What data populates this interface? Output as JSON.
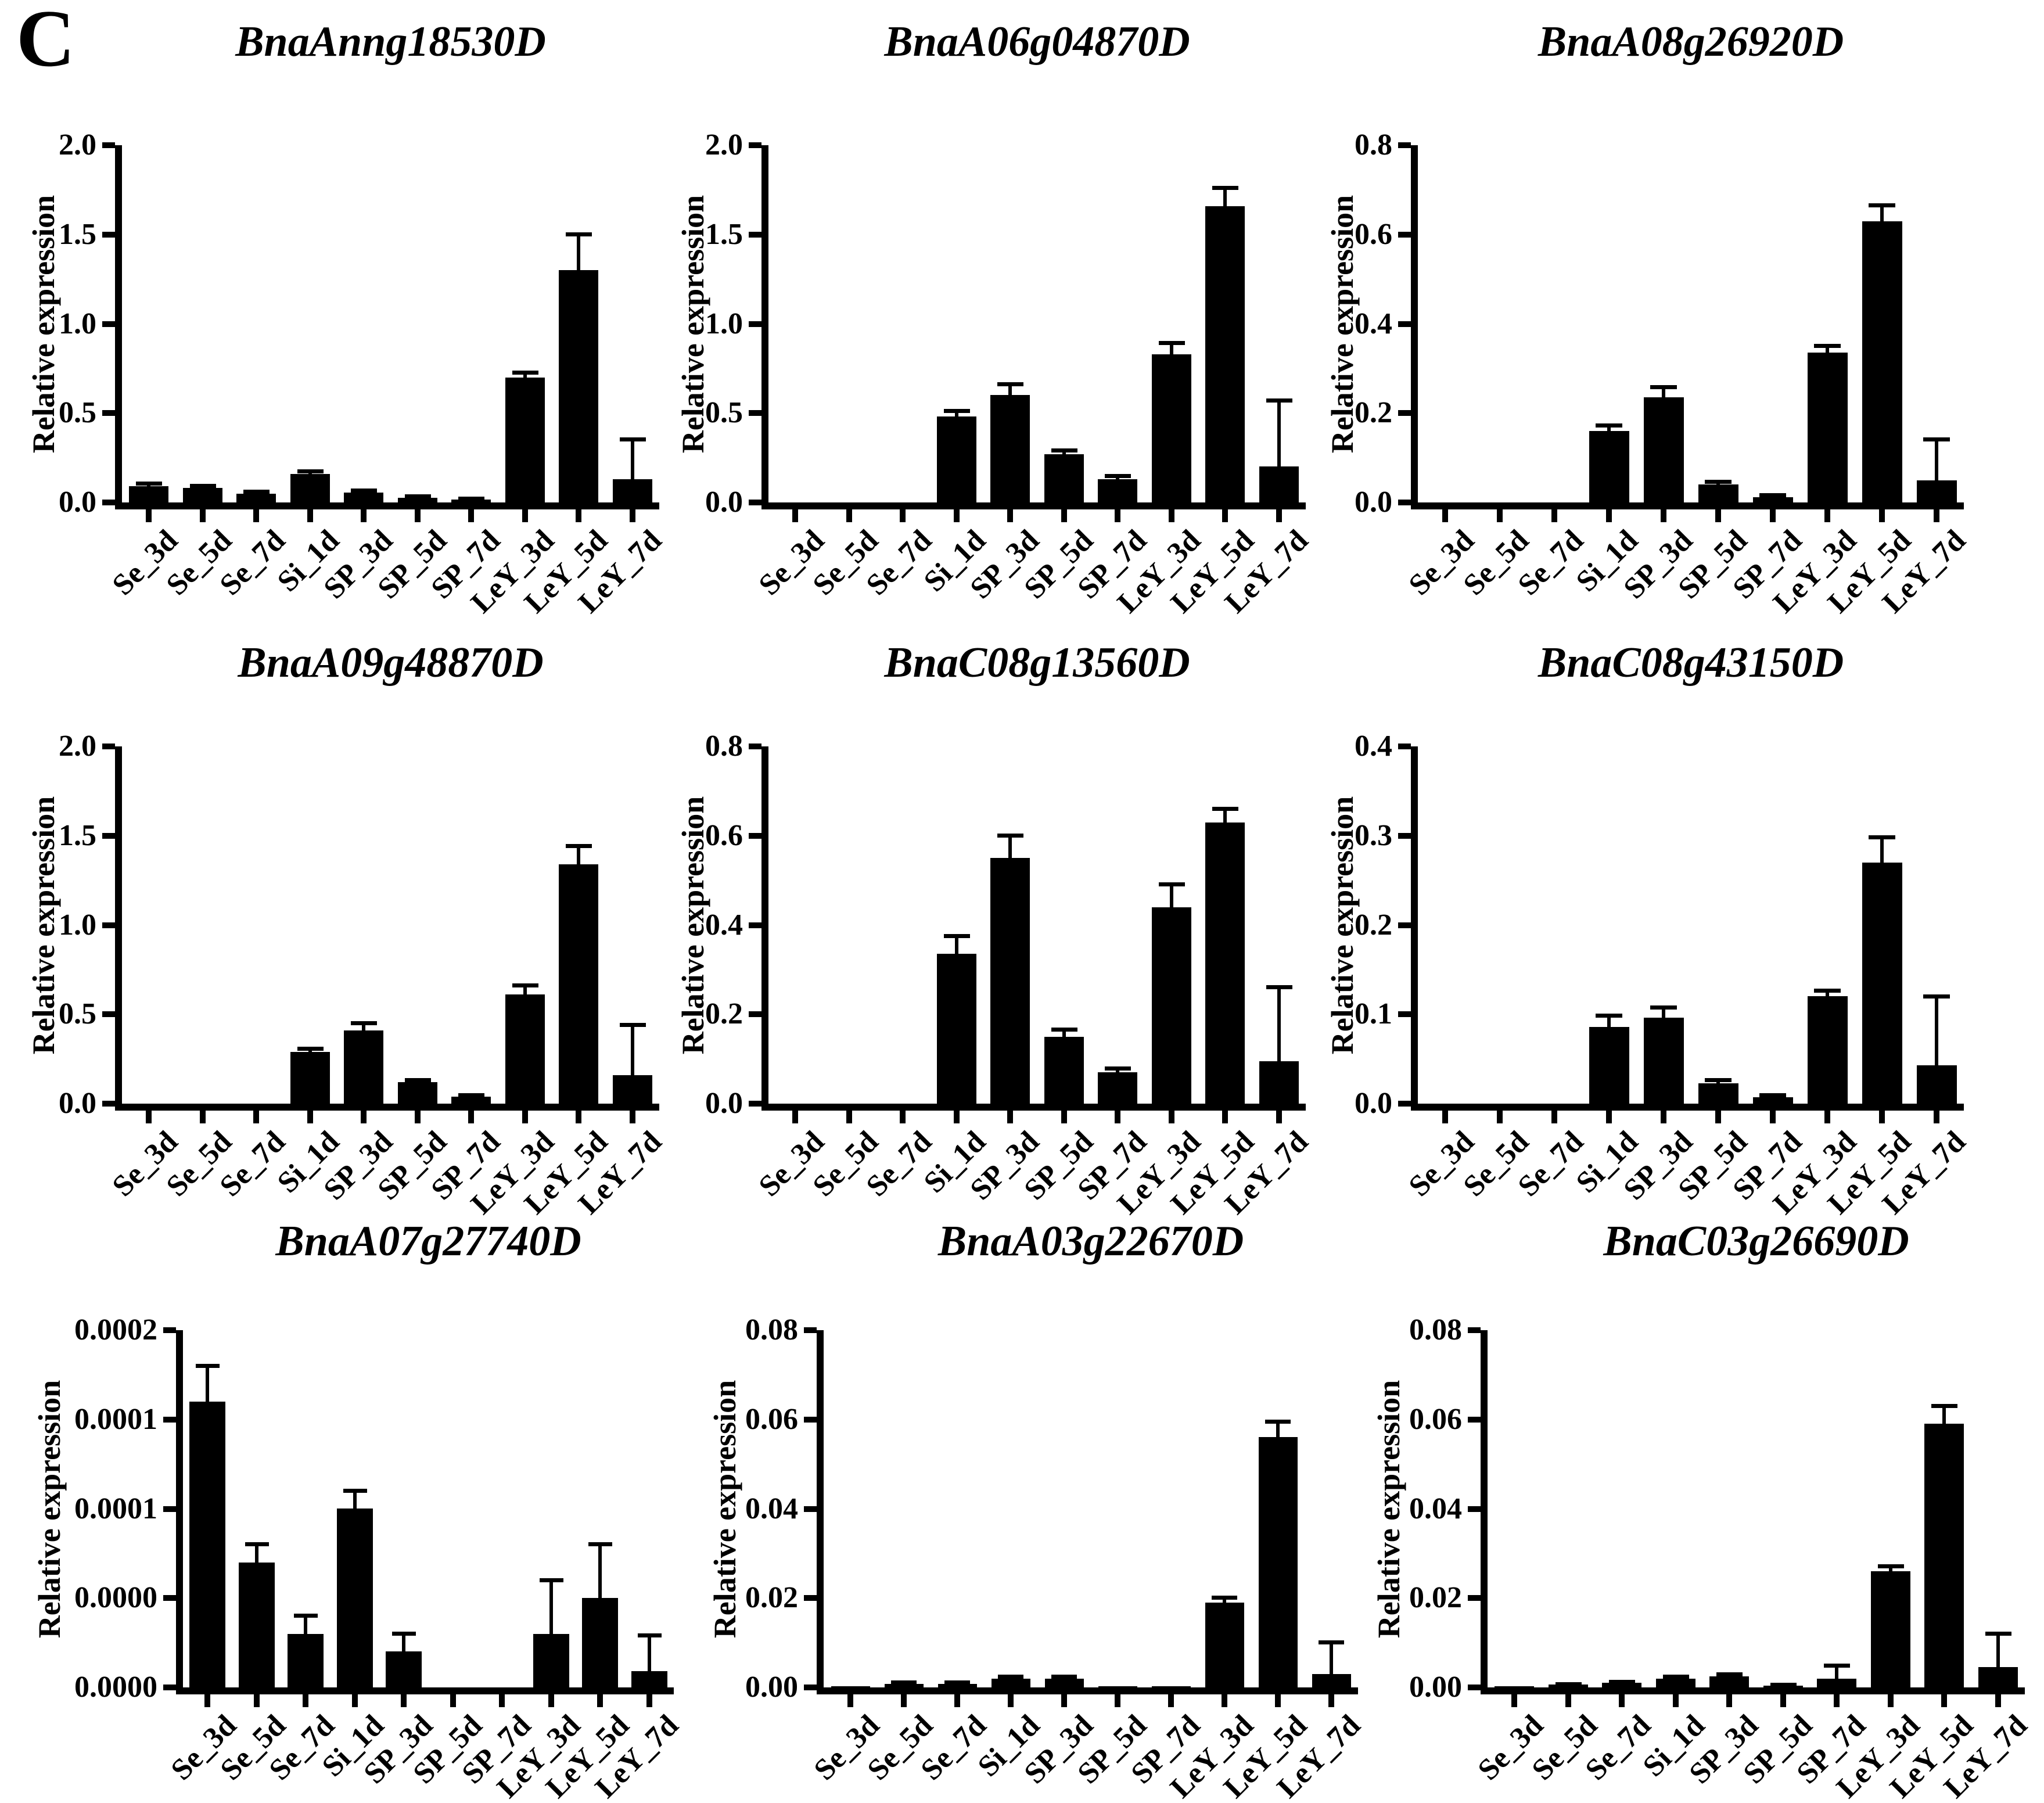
{
  "panel_label": "C",
  "colors": {
    "bar": "#000000",
    "background": "#ffffff",
    "text": "#000000"
  },
  "chart_data": [
    {
      "type": "bar",
      "title": "BnaAnng18530D",
      "xlabel": "",
      "ylabel": "Relative expression",
      "ylim": [
        0,
        2.0
      ],
      "ytick_labels": [
        "0.0",
        "0.5",
        "1.0",
        "1.5",
        "2.0"
      ],
      "categories": [
        "Se_3d",
        "Se_5d",
        "Se_7d",
        "Si_1d",
        "SP_3d",
        "SP_5d",
        "SP_7d",
        "LeY_3d",
        "LeY_5d",
        "LeY_7d"
      ],
      "values": [
        0.09,
        0.08,
        0.05,
        0.16,
        0.055,
        0.025,
        0.015,
        0.7,
        1.3,
        0.13
      ],
      "errors": [
        0.015,
        0.01,
        0.008,
        0.012,
        0.01,
        0.006,
        0.005,
        0.025,
        0.2,
        0.22
      ]
    },
    {
      "type": "bar",
      "title": "BnaA06g04870D",
      "xlabel": "",
      "ylabel": "Relative expression",
      "ylim": [
        0,
        2.0
      ],
      "ytick_labels": [
        "0.0",
        "0.5",
        "1.0",
        "1.5",
        "2.0"
      ],
      "categories": [
        "Se_3d",
        "Se_5d",
        "Se_7d",
        "Si_1d",
        "SP_3d",
        "SP_5d",
        "SP_7d",
        "LeY_3d",
        "LeY_5d",
        "LeY_7d"
      ],
      "values": [
        0,
        0,
        0,
        0.48,
        0.6,
        0.27,
        0.13,
        0.83,
        1.66,
        0.2
      ],
      "errors": [
        0,
        0,
        0,
        0.03,
        0.06,
        0.02,
        0.015,
        0.06,
        0.1,
        0.37
      ]
    },
    {
      "type": "bar",
      "title": "BnaA08g26920D",
      "xlabel": "",
      "ylabel": "Relative expression",
      "ylim": [
        0,
        0.8
      ],
      "ytick_labels": [
        "0.0",
        "0.2",
        "0.4",
        "0.6",
        "0.8"
      ],
      "categories": [
        "Se_3d",
        "Se_5d",
        "Se_7d",
        "Si_1d",
        "SP_3d",
        "SP_5d",
        "SP_7d",
        "LeY_3d",
        "LeY_5d",
        "LeY_7d"
      ],
      "values": [
        0,
        0,
        0,
        0.16,
        0.235,
        0.04,
        0.012,
        0.335,
        0.63,
        0.05
      ],
      "errors": [
        0,
        0,
        0,
        0.012,
        0.022,
        0.005,
        0.003,
        0.015,
        0.035,
        0.09
      ]
    },
    {
      "type": "bar",
      "title": "BnaA09g48870D",
      "xlabel": "",
      "ylabel": "Relative expression",
      "ylim": [
        0,
        2.0
      ],
      "ytick_labels": [
        "0.0",
        "0.5",
        "1.0",
        "1.5",
        "2.0"
      ],
      "categories": [
        "Se_3d",
        "Se_5d",
        "Se_7d",
        "Si_1d",
        "SP_3d",
        "SP_5d",
        "SP_7d",
        "LeY_3d",
        "LeY_5d",
        "LeY_7d"
      ],
      "values": [
        0,
        0,
        0,
        0.29,
        0.41,
        0.12,
        0.04,
        0.61,
        1.34,
        0.16
      ],
      "errors": [
        0,
        0,
        0,
        0.015,
        0.04,
        0.01,
        0.006,
        0.05,
        0.1,
        0.28
      ]
    },
    {
      "type": "bar",
      "title": "BnaC08g13560D",
      "xlabel": "",
      "ylabel": "Relative expression",
      "ylim": [
        0,
        0.8
      ],
      "ytick_labels": [
        "0.0",
        "0.2",
        "0.4",
        "0.6",
        "0.8"
      ],
      "categories": [
        "Se_3d",
        "Se_5d",
        "Se_7d",
        "Si_1d",
        "SP_3d",
        "SP_5d",
        "SP_7d",
        "LeY_3d",
        "LeY_5d",
        "LeY_7d"
      ],
      "values": [
        0,
        0,
        0,
        0.335,
        0.55,
        0.15,
        0.07,
        0.44,
        0.63,
        0.095
      ],
      "errors": [
        0,
        0,
        0,
        0.04,
        0.05,
        0.015,
        0.008,
        0.05,
        0.03,
        0.165
      ]
    },
    {
      "type": "bar",
      "title": "BnaC08g43150D",
      "xlabel": "",
      "ylabel": "Relative expression",
      "ylim": [
        0,
        0.4
      ],
      "ytick_labels": [
        "0.0",
        "0.1",
        "0.2",
        "0.3",
        "0.4"
      ],
      "categories": [
        "Se_3d",
        "Se_5d",
        "Se_7d",
        "Si_1d",
        "SP_3d",
        "SP_5d",
        "SP_7d",
        "LeY_3d",
        "LeY_5d",
        "LeY_7d"
      ],
      "values": [
        0,
        0,
        0,
        0.086,
        0.096,
        0.023,
        0.007,
        0.12,
        0.27,
        0.043
      ],
      "errors": [
        0,
        0,
        0,
        0.012,
        0.011,
        0.003,
        0.002,
        0.006,
        0.028,
        0.077
      ]
    },
    {
      "type": "bar",
      "title": "BnaA07g27740D",
      "xlabel": "",
      "ylabel": "Relative expression",
      "ylim": [
        0,
        0.0002
      ],
      "ytick_labels": [
        "0.0000",
        "0.0000",
        "0.0001",
        "0.0001",
        "0.0002"
      ],
      "categories": [
        "Se_3d",
        "Se_5d",
        "Se_7d",
        "Si_1d",
        "SP_3d",
        "SP_5d",
        "SP_7d",
        "LeY_3d",
        "LeY_5d",
        "LeY_7d"
      ],
      "values": [
        0.00016,
        7e-05,
        3e-05,
        0.0001,
        2e-05,
        0,
        0,
        3e-05,
        5e-05,
        9e-06
      ],
      "errors": [
        2e-05,
        1e-05,
        1e-05,
        1e-05,
        1e-05,
        0,
        0,
        3e-05,
        3e-05,
        2e-05
      ]
    },
    {
      "type": "bar",
      "title": "BnaA03g22670D",
      "xlabel": "",
      "ylabel": "Relative expression",
      "ylim": [
        0,
        0.08
      ],
      "ytick_labels": [
        "0.00",
        "0.02",
        "0.04",
        "0.06",
        "0.08"
      ],
      "categories": [
        "Se_3d",
        "Se_5d",
        "Se_7d",
        "Si_1d",
        "SP_3d",
        "SP_5d",
        "SP_7d",
        "LeY_3d",
        "LeY_5d",
        "LeY_7d"
      ],
      "values": [
        0.0003,
        0.0008,
        0.0008,
        0.002,
        0.002,
        0.0002,
        0.0002,
        0.019,
        0.056,
        0.003
      ],
      "errors": [
        0,
        0.0002,
        0.0002,
        0.0004,
        0.0003,
        0,
        0,
        0.001,
        0.0035,
        0.007
      ]
    },
    {
      "type": "bar",
      "title": "BnaC03g26690D",
      "xlabel": "",
      "ylabel": "Relative expression",
      "ylim": [
        0,
        0.08
      ],
      "ytick_labels": [
        "0.00",
        "0.02",
        "0.04",
        "0.06",
        "0.08"
      ],
      "categories": [
        "Se_3d",
        "Se_5d",
        "Se_7d",
        "Si_1d",
        "SP_3d",
        "SP_5d",
        "SP_7d",
        "LeY_3d",
        "LeY_5d",
        "LeY_7d"
      ],
      "values": [
        0.0003,
        0.0006,
        0.001,
        0.002,
        0.0025,
        0.0004,
        0.002,
        0.026,
        0.059,
        0.0045
      ],
      "errors": [
        0,
        0.0001,
        0.0002,
        0.0004,
        0.0004,
        0.0001,
        0.0028,
        0.001,
        0.004,
        0.0075
      ]
    }
  ]
}
